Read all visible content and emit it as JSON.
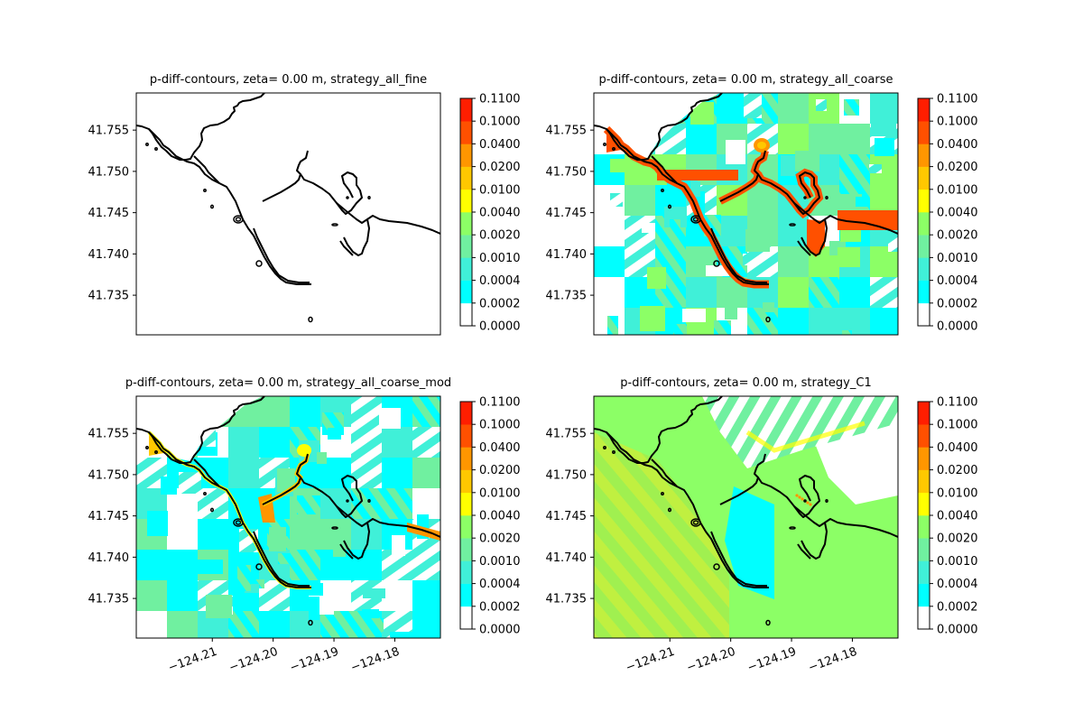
{
  "figure": {
    "panels": [
      {
        "title": "p-diff-contours, zeta= 0.00 m, strategy_all_fine",
        "fill": "none"
      },
      {
        "title": "p-diff-contours, zeta= 0.00 m, strategy_all_coarse",
        "fill": "coarse"
      },
      {
        "title": "p-diff-contours, zeta= 0.00 m, strategy_all_coarse_mod",
        "fill": "coarse_mod"
      },
      {
        "title": "p-diff-contours, zeta= 0.00 m, strategy_C1",
        "fill": "c1"
      }
    ]
  },
  "chart_data": {
    "type": "heatmap",
    "panel_count": 4,
    "x_tick_labels": [
      "−124.21",
      "−124.20",
      "−124.19",
      "−124.18"
    ],
    "x_ticks": [
      -124.21,
      -124.2,
      -124.19,
      -124.18
    ],
    "x_range": [
      -124.2225,
      -124.1725
    ],
    "y_tick_labels": [
      "41.735",
      "41.740",
      "41.745",
      "41.750",
      "41.755"
    ],
    "y_ticks": [
      41.735,
      41.74,
      41.745,
      41.75,
      41.755
    ],
    "y_range": [
      41.7302,
      41.7595
    ],
    "colorbar": {
      "levels": [
        "0.0000",
        "0.0002",
        "0.0004",
        "0.0010",
        "0.0020",
        "0.0040",
        "0.0100",
        "0.0200",
        "0.0400",
        "0.1000",
        "0.1100"
      ],
      "colors": [
        "#ffffff",
        "#00ffff",
        "#40f0d8",
        "#70f0a0",
        "#8cff66",
        "#ffff00",
        "#ffc800",
        "#ff9600",
        "#ff5000",
        "#ff1e00"
      ]
    },
    "coastline_color": "#000000",
    "grid": false
  }
}
